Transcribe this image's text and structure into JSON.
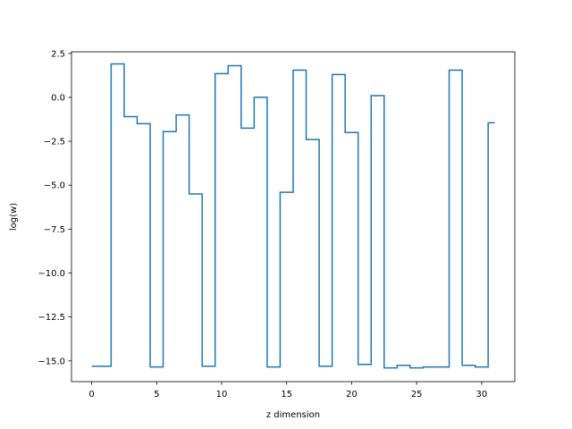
{
  "chart_data": {
    "type": "line",
    "drawstyle": "steps-mid",
    "title": "",
    "xlabel": "z dimension",
    "ylabel": "log(w)",
    "xlim": [
      -1.55,
      32.55
    ],
    "ylim": [
      -16.18,
      2.59
    ],
    "xticks": [
      0,
      5,
      10,
      15,
      20,
      25,
      30
    ],
    "xtick_labels": [
      "0",
      "5",
      "10",
      "15",
      "20",
      "25",
      "30"
    ],
    "yticks": [
      2.5,
      0.0,
      -2.5,
      -5.0,
      -7.5,
      -10.0,
      -12.5,
      -15.0
    ],
    "ytick_labels": [
      "2.5",
      "0.0",
      "−2.5",
      "−5.0",
      "−7.5",
      "−10.0",
      "−12.5",
      "−15.0"
    ],
    "grid": false,
    "series": [
      {
        "color": "#1f77b4",
        "x": [
          0,
          1,
          2,
          3,
          4,
          5,
          6,
          7,
          8,
          9,
          10,
          11,
          12,
          13,
          14,
          15,
          16,
          17,
          18,
          19,
          20,
          21,
          22,
          23,
          24,
          25,
          26,
          27,
          28,
          29,
          30,
          31
        ],
        "y": [
          -15.3,
          -15.3,
          1.9,
          -1.1,
          -1.5,
          -15.35,
          -1.95,
          -1.0,
          -5.5,
          -15.3,
          1.35,
          1.8,
          -1.75,
          0.0,
          -15.35,
          -5.4,
          1.55,
          -2.4,
          -15.3,
          1.3,
          -2.0,
          -15.2,
          0.1,
          -15.4,
          -15.25,
          -15.4,
          -15.35,
          -15.35,
          1.55,
          -15.25,
          -15.35,
          -1.45
        ]
      }
    ]
  }
}
